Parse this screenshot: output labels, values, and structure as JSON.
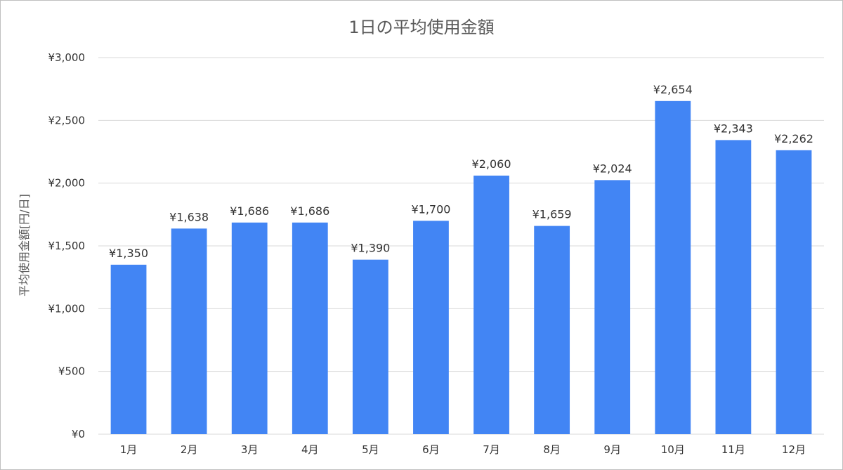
{
  "chart_data": {
    "type": "bar",
    "title": "1日の平均使用金額",
    "xlabel": "",
    "ylabel": "平均使用金額[円/日]",
    "categories": [
      "1月",
      "2月",
      "3月",
      "4月",
      "5月",
      "6月",
      "7月",
      "8月",
      "9月",
      "10月",
      "11月",
      "12月"
    ],
    "values": [
      1350,
      1638,
      1686,
      1686,
      1390,
      1700,
      2060,
      1659,
      2024,
      2654,
      2343,
      2262
    ],
    "data_labels": [
      "¥1,350",
      "¥1,638",
      "¥1,686",
      "¥1,686",
      "¥1,390",
      "¥1,700",
      "¥2,060",
      "¥1,659",
      "¥2,024",
      "¥2,654",
      "¥2,343",
      "¥2,262"
    ],
    "ylim": [
      0,
      3000
    ],
    "yticks": [
      0,
      500,
      1000,
      1500,
      2000,
      2500,
      3000
    ],
    "ytick_labels": [
      "¥0",
      "¥500",
      "¥1,000",
      "¥1,500",
      "¥2,000",
      "¥2,500",
      "¥3,000"
    ],
    "grid": true,
    "legend": "none",
    "bar_color": "#4285f4"
  }
}
